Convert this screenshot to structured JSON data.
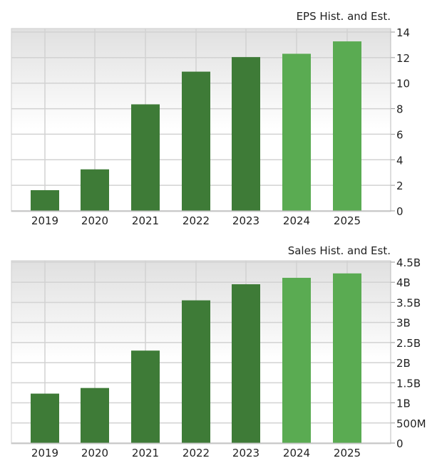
{
  "chart_data": [
    {
      "type": "bar",
      "title": "EPS Hist. and Est.",
      "categories": [
        "2019",
        "2020",
        "2021",
        "2022",
        "2023",
        "2024",
        "2025"
      ],
      "values": [
        1.62,
        3.25,
        8.34,
        10.9,
        12.04,
        12.3,
        13.27
      ],
      "estimate_from_index": 5,
      "ylim": [
        0,
        14
      ],
      "yticks": [
        0,
        2,
        4,
        6,
        8,
        10,
        12,
        14
      ],
      "ytick_labels": [
        "0",
        "2",
        "4",
        "6",
        "8",
        "10",
        "12",
        "14"
      ],
      "y_axis_side": "right",
      "grid": true
    },
    {
      "type": "bar",
      "title": "Sales Hist. and Est.",
      "categories": [
        "2019",
        "2020",
        "2021",
        "2022",
        "2023",
        "2024",
        "2025"
      ],
      "values": [
        1230000000.0,
        1370000000.0,
        2300000000.0,
        3550000000.0,
        3950000000.0,
        4110000000.0,
        4220000000.0
      ],
      "estimate_from_index": 5,
      "ylim": [
        0,
        4500000000.0
      ],
      "yticks": [
        0,
        500000000.0,
        1000000000.0,
        1500000000.0,
        2000000000.0,
        2500000000.0,
        3000000000.0,
        3500000000.0,
        4000000000.0,
        4500000000.0
      ],
      "ytick_labels": [
        "0",
        "500M",
        "1B",
        "1.5B",
        "2B",
        "2.5B",
        "3B",
        "3.5B",
        "4B",
        "4.5B"
      ],
      "y_axis_side": "right",
      "grid": true
    }
  ],
  "colors": {
    "historical": "#3e7b37",
    "estimate": "#5aab52",
    "grid": "#d2d2d2",
    "bg_top": "#e0e0e0"
  }
}
